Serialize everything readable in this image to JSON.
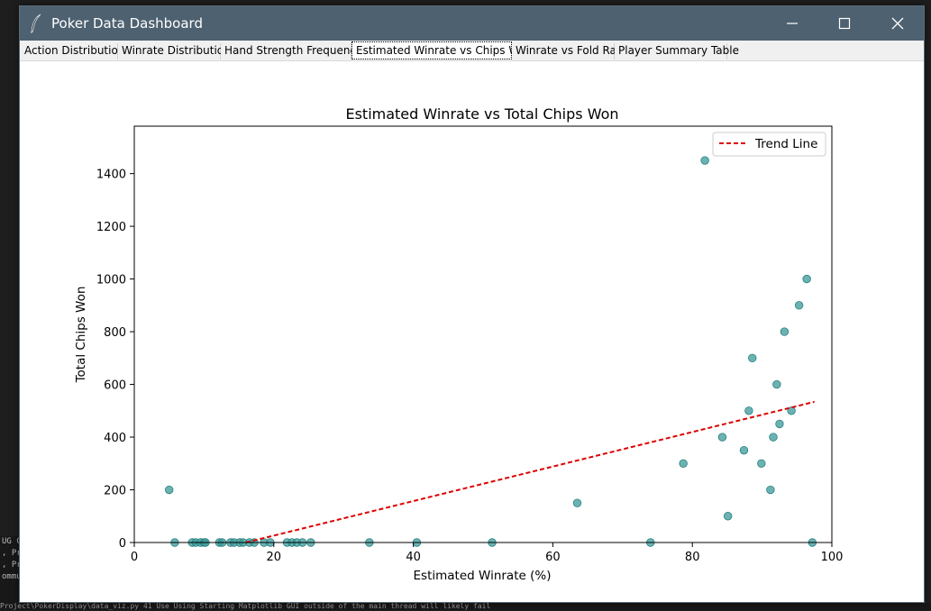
{
  "window": {
    "title": "Poker Data Dashboard",
    "icons": {
      "app": "feather-icon",
      "minimize": "minimize-icon",
      "maximize": "maximize-icon",
      "close": "close-icon"
    }
  },
  "tabs": [
    {
      "label": "Action Distribution",
      "active": false
    },
    {
      "label": "Winrate Distribution",
      "active": false
    },
    {
      "label": "Hand Strength Frequency",
      "active": false
    },
    {
      "label": "Estimated Winrate vs Chips Won",
      "active": true
    },
    {
      "label": "Winrate vs Fold Rate",
      "active": false
    },
    {
      "label": "Player Summary Table",
      "active": false
    }
  ],
  "background": {
    "terminal_lines": [
      "UG C",
      ", Pr",
      ", Pr",
      "ommu"
    ],
    "bottom_line": "Project\\PokerDisplay\\data_viz.py 41 Use Using Starting Matplotlib GUI outside of the main thread will likely fail"
  },
  "chart_data": {
    "type": "scatter",
    "title": "Estimated Winrate vs Total Chips Won",
    "xlabel": "Estimated Winrate (%)",
    "ylabel": "Total Chips Won",
    "xlim": [
      0,
      100
    ],
    "ylim": [
      0,
      1580
    ],
    "xticks": [
      0,
      20,
      40,
      60,
      80,
      100
    ],
    "yticks": [
      0,
      200,
      400,
      600,
      800,
      1000,
      1200,
      1400
    ],
    "grid": false,
    "legend": {
      "placement": "top-right",
      "entries": [
        "Trend Line"
      ]
    },
    "point_color": "#3a9a9a",
    "trend_color": "#dd0000",
    "trend_line": {
      "x": [
        16,
        97.5
      ],
      "y": [
        0,
        534
      ]
    },
    "points": [
      {
        "x": 5,
        "y": 200
      },
      {
        "x": 5.8,
        "y": 0
      },
      {
        "x": 8.3,
        "y": 0
      },
      {
        "x": 8.8,
        "y": 0
      },
      {
        "x": 9.5,
        "y": 0
      },
      {
        "x": 10,
        "y": 0
      },
      {
        "x": 10.2,
        "y": 0
      },
      {
        "x": 12.2,
        "y": 0
      },
      {
        "x": 12.6,
        "y": 0
      },
      {
        "x": 13.8,
        "y": 0
      },
      {
        "x": 14.3,
        "y": 0
      },
      {
        "x": 15.1,
        "y": 0
      },
      {
        "x": 15.6,
        "y": 0
      },
      {
        "x": 16.5,
        "y": 0
      },
      {
        "x": 17.2,
        "y": 0
      },
      {
        "x": 18.6,
        "y": 0
      },
      {
        "x": 19.5,
        "y": 0
      },
      {
        "x": 21.9,
        "y": 0
      },
      {
        "x": 22.6,
        "y": 0
      },
      {
        "x": 23.3,
        "y": 0
      },
      {
        "x": 24.1,
        "y": 0
      },
      {
        "x": 25.3,
        "y": 0
      },
      {
        "x": 33.7,
        "y": 0
      },
      {
        "x": 40.5,
        "y": 0
      },
      {
        "x": 51.3,
        "y": 0
      },
      {
        "x": 63.5,
        "y": 150
      },
      {
        "x": 74,
        "y": 0
      },
      {
        "x": 78.7,
        "y": 300
      },
      {
        "x": 81.8,
        "y": 1450
      },
      {
        "x": 84.3,
        "y": 400
      },
      {
        "x": 85.1,
        "y": 100
      },
      {
        "x": 87.4,
        "y": 350
      },
      {
        "x": 88.1,
        "y": 500
      },
      {
        "x": 88.6,
        "y": 700
      },
      {
        "x": 89.9,
        "y": 300
      },
      {
        "x": 91.2,
        "y": 200
      },
      {
        "x": 91.6,
        "y": 400
      },
      {
        "x": 92.1,
        "y": 600
      },
      {
        "x": 92.5,
        "y": 450
      },
      {
        "x": 93.2,
        "y": 800
      },
      {
        "x": 94.2,
        "y": 500
      },
      {
        "x": 95.3,
        "y": 900
      },
      {
        "x": 96.4,
        "y": 1000
      },
      {
        "x": 97.2,
        "y": 0
      }
    ]
  }
}
